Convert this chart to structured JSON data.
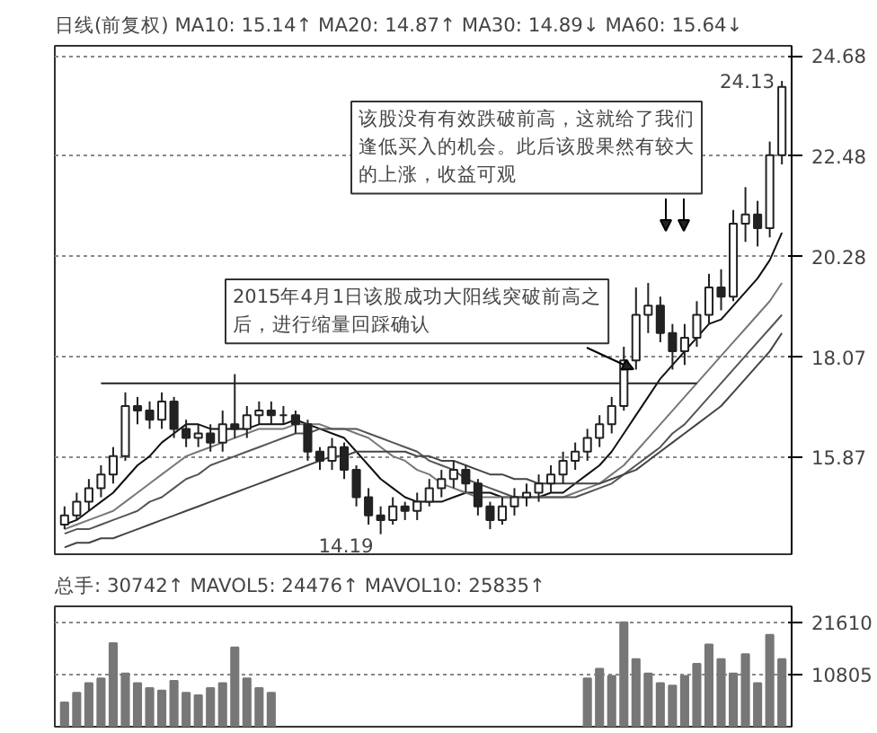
{
  "chart_data": [
    {
      "type": "candlestick",
      "categories": [
        null,
        null,
        null,
        null,
        null,
        null,
        null,
        null,
        null,
        null,
        null,
        null,
        null,
        null,
        null,
        null,
        null,
        null,
        null,
        null,
        null,
        null,
        null,
        null,
        null,
        null,
        null,
        null,
        null,
        null,
        null,
        null,
        null,
        null,
        null,
        null,
        null,
        null,
        null,
        null,
        null,
        null,
        null,
        null,
        null,
        null,
        null,
        null,
        null,
        null,
        null,
        null,
        null,
        null,
        null,
        null,
        null,
        null,
        null,
        null
      ],
      "ohlc": [
        [
          14.4,
          14.8,
          14.3,
          14.6
        ],
        [
          14.6,
          15.1,
          14.5,
          14.9
        ],
        [
          14.9,
          15.4,
          14.7,
          15.2
        ],
        [
          15.2,
          15.7,
          15.0,
          15.5
        ],
        [
          15.5,
          16.1,
          15.3,
          15.9
        ],
        [
          15.9,
          17.3,
          15.8,
          17.0
        ],
        [
          17.0,
          17.2,
          16.6,
          16.9
        ],
        [
          16.9,
          17.1,
          16.5,
          16.7
        ],
        [
          16.7,
          17.3,
          16.5,
          17.1
        ],
        [
          17.1,
          17.2,
          16.3,
          16.5
        ],
        [
          16.5,
          16.7,
          16.1,
          16.3
        ],
        [
          16.3,
          16.6,
          16.1,
          16.4
        ],
        [
          16.4,
          16.6,
          16.0,
          16.2
        ],
        [
          16.2,
          16.9,
          16.0,
          16.6
        ],
        [
          16.6,
          17.7,
          16.3,
          16.5
        ],
        [
          16.5,
          17.0,
          16.3,
          16.8
        ],
        [
          16.8,
          17.1,
          16.6,
          16.9
        ],
        [
          16.9,
          17.1,
          16.6,
          16.8
        ],
        [
          16.8,
          17.0,
          16.6,
          16.8
        ],
        [
          16.8,
          16.9,
          16.4,
          16.6
        ],
        [
          16.6,
          16.7,
          15.8,
          16.0
        ],
        [
          16.0,
          16.1,
          15.6,
          15.8
        ],
        [
          15.8,
          16.3,
          15.6,
          16.1
        ],
        [
          16.1,
          16.2,
          15.4,
          15.6
        ],
        [
          15.6,
          15.7,
          14.8,
          15.0
        ],
        [
          15.0,
          15.2,
          14.4,
          14.6
        ],
        [
          14.6,
          14.8,
          14.19,
          14.5
        ],
        [
          14.5,
          15.0,
          14.4,
          14.8
        ],
        [
          14.8,
          14.9,
          14.5,
          14.7
        ],
        [
          14.7,
          15.1,
          14.5,
          14.9
        ],
        [
          14.9,
          15.4,
          14.8,
          15.2
        ],
        [
          15.2,
          15.6,
          15.0,
          15.4
        ],
        [
          15.4,
          15.8,
          15.2,
          15.6
        ],
        [
          15.6,
          15.7,
          15.1,
          15.3
        ],
        [
          15.3,
          15.4,
          14.6,
          14.8
        ],
        [
          14.8,
          14.9,
          14.3,
          14.5
        ],
        [
          14.5,
          15.0,
          14.4,
          14.8
        ],
        [
          14.8,
          15.2,
          14.6,
          15.0
        ],
        [
          15.0,
          15.3,
          14.8,
          15.1
        ],
        [
          15.1,
          15.5,
          14.9,
          15.3
        ],
        [
          15.3,
          15.7,
          15.1,
          15.5
        ],
        [
          15.5,
          16.0,
          15.3,
          15.8
        ],
        [
          15.8,
          16.2,
          15.6,
          16.0
        ],
        [
          16.0,
          16.5,
          15.8,
          16.3
        ],
        [
          16.3,
          16.8,
          16.1,
          16.6
        ],
        [
          16.6,
          17.2,
          16.4,
          17.0
        ],
        [
          17.0,
          18.3,
          16.9,
          18.0
        ],
        [
          18.0,
          19.6,
          17.8,
          19.0
        ],
        [
          19.0,
          19.7,
          18.6,
          19.2
        ],
        [
          19.2,
          19.4,
          18.4,
          18.6
        ],
        [
          18.6,
          18.8,
          17.8,
          18.2
        ],
        [
          18.2,
          18.8,
          17.9,
          18.5
        ],
        [
          18.5,
          19.3,
          18.3,
          19.0
        ],
        [
          19.0,
          19.9,
          18.8,
          19.6
        ],
        [
          19.6,
          20.0,
          19.1,
          19.4
        ],
        [
          19.4,
          21.3,
          19.3,
          21.0
        ],
        [
          21.0,
          21.8,
          20.6,
          21.2
        ],
        [
          21.2,
          21.5,
          20.5,
          20.9
        ],
        [
          20.9,
          22.8,
          20.7,
          22.5
        ],
        [
          22.5,
          24.13,
          22.3,
          24.0
        ]
      ],
      "series": [
        {
          "type": "line",
          "color": "#111111",
          "values": [
            14.4,
            14.5,
            14.7,
            14.9,
            15.1,
            15.4,
            15.7,
            15.9,
            16.2,
            16.4,
            16.6,
            16.6,
            16.5,
            16.5,
            16.5,
            16.5,
            16.6,
            16.6,
            16.6,
            16.7,
            16.6,
            16.5,
            16.4,
            16.3,
            16.0,
            15.7,
            15.4,
            15.2,
            15.0,
            14.9,
            14.9,
            14.9,
            15.0,
            15.1,
            15.1,
            15.1,
            15.0,
            15.0,
            15.0,
            15.0,
            15.1,
            15.1,
            15.3,
            15.5,
            15.7,
            16.0,
            16.4,
            16.8,
            17.2,
            17.6,
            17.9,
            18.2,
            18.5,
            18.8,
            18.9,
            19.2,
            19.5,
            19.8,
            20.2,
            20.8
          ]
        },
        {
          "type": "line",
          "color": "#777777",
          "values": [
            14.3,
            14.4,
            14.5,
            14.6,
            14.7,
            14.9,
            15.1,
            15.3,
            15.5,
            15.7,
            15.9,
            16.0,
            16.1,
            16.2,
            16.3,
            16.4,
            16.5,
            16.5,
            16.5,
            16.6,
            16.6,
            16.6,
            16.5,
            16.5,
            16.4,
            16.3,
            16.1,
            15.9,
            15.8,
            15.6,
            15.5,
            15.3,
            15.2,
            15.1,
            15.0,
            15.0,
            15.0,
            15.0,
            15.0,
            15.0,
            15.0,
            15.0,
            15.1,
            15.2,
            15.3,
            15.5,
            15.7,
            16.0,
            16.3,
            16.6,
            16.9,
            17.2,
            17.5,
            17.8,
            18.1,
            18.4,
            18.7,
            19.0,
            19.3,
            19.7
          ]
        },
        {
          "type": "line",
          "color": "#555555",
          "values": [
            14.2,
            14.3,
            14.3,
            14.4,
            14.5,
            14.6,
            14.7,
            14.9,
            15.0,
            15.2,
            15.4,
            15.5,
            15.7,
            15.8,
            15.9,
            16.0,
            16.1,
            16.2,
            16.3,
            16.4,
            16.4,
            16.5,
            16.5,
            16.5,
            16.5,
            16.4,
            16.3,
            16.2,
            16.1,
            16.0,
            15.8,
            15.7,
            15.6,
            15.4,
            15.3,
            15.2,
            15.1,
            15.0,
            15.0,
            15.0,
            15.0,
            15.0,
            15.0,
            15.1,
            15.2,
            15.3,
            15.5,
            15.7,
            15.9,
            16.1,
            16.4,
            16.6,
            16.9,
            17.2,
            17.5,
            17.8,
            18.1,
            18.4,
            18.7,
            19.0
          ]
        },
        {
          "type": "line",
          "color": "#444444",
          "values": [
            13.9,
            14.0,
            14.0,
            14.1,
            14.1,
            14.2,
            14.3,
            14.4,
            14.5,
            14.6,
            14.7,
            14.8,
            14.9,
            15.0,
            15.1,
            15.2,
            15.3,
            15.4,
            15.5,
            15.6,
            15.7,
            15.8,
            15.9,
            15.9,
            16.0,
            16.0,
            16.0,
            16.0,
            16.0,
            15.9,
            15.9,
            15.8,
            15.8,
            15.7,
            15.6,
            15.5,
            15.5,
            15.4,
            15.4,
            15.3,
            15.3,
            15.3,
            15.3,
            15.3,
            15.3,
            15.4,
            15.5,
            15.6,
            15.8,
            16.0,
            16.2,
            16.4,
            16.6,
            16.8,
            17.0,
            17.3,
            17.6,
            17.9,
            18.2,
            18.6
          ]
        },
        {
          "type": "line",
          "color": "#222222",
          "values": [
            null,
            null,
            null,
            17.5,
            17.5,
            17.5,
            17.5,
            17.5,
            17.5,
            17.5,
            17.5,
            17.5,
            17.5,
            17.5,
            17.5,
            17.5,
            17.5,
            17.5,
            17.5,
            17.5,
            17.5,
            17.5,
            17.5,
            17.5,
            17.5,
            17.5,
            17.5,
            17.5,
            17.5,
            17.5,
            17.5,
            17.5,
            17.5,
            17.5,
            17.5,
            17.5,
            17.5,
            17.5,
            17.5,
            17.5,
            17.5,
            17.5,
            17.5,
            17.5,
            17.5,
            17.5,
            17.5,
            17.5,
            17.5,
            17.5,
            17.5,
            17.5,
            17.5,
            null,
            null,
            null,
            null,
            null,
            null,
            null
          ]
        }
      ],
      "color": "#222222",
      "ylim": [
        13.75,
        24.9
      ],
      "yticks": [
        15.87,
        18.07,
        20.28,
        22.48,
        24.68
      ],
      "grid": "y",
      "tick_labels": "y",
      "annotations": [
        "日线(前复权)  MA10: 15.14↑  MA20: 14.87↑  MA30: 14.89↓  MA60: 15.64↓",
        "该股没有有效跌破前高，这就给了我们逢低买入的机会。此后该股果然有较大的上涨，收益可观",
        "2015年4月1日该股成功大阳线突破前高之后，进行缩量回踩确认",
        "14.19",
        "24.13"
      ]
    },
    {
      "type": "bar",
      "categories": [
        null,
        null,
        null,
        null,
        null,
        null,
        null,
        null,
        null,
        null,
        null,
        null,
        null,
        null,
        null,
        null,
        null,
        null,
        null,
        null,
        null,
        null,
        null,
        null,
        null,
        null,
        null,
        null,
        null,
        null,
        null,
        null,
        null,
        null,
        null,
        null,
        null,
        null,
        null,
        null,
        null,
        null,
        null,
        null,
        null,
        null,
        null,
        null,
        null,
        null,
        null,
        null,
        null,
        null,
        null,
        null,
        null,
        null,
        null,
        null
      ],
      "values": [
        5000,
        7000,
        9000,
        10000,
        17300,
        11000,
        9000,
        8000,
        7500,
        9500,
        7000,
        6500,
        8000,
        9000,
        16400,
        10000,
        8000,
        7000,
        null,
        null,
        null,
        null,
        null,
        null,
        null,
        null,
        null,
        null,
        null,
        null,
        null,
        null,
        null,
        null,
        null,
        null,
        null,
        null,
        null,
        null,
        null,
        null,
        null,
        10000,
        12000,
        10500,
        21600,
        14000,
        11000,
        9000,
        8500,
        10500,
        13000,
        17000,
        14000,
        11000,
        15000,
        9000,
        19000,
        14000
      ],
      "color": "#777777",
      "ylim": [
        0,
        24900
      ],
      "yticks": [
        10805,
        21610
      ],
      "grid": "y",
      "tick_labels": "y",
      "annotations": [
        "总手: 30742↑  MAVOL5: 24476↑  MAVOL10: 25835↑"
      ]
    }
  ]
}
